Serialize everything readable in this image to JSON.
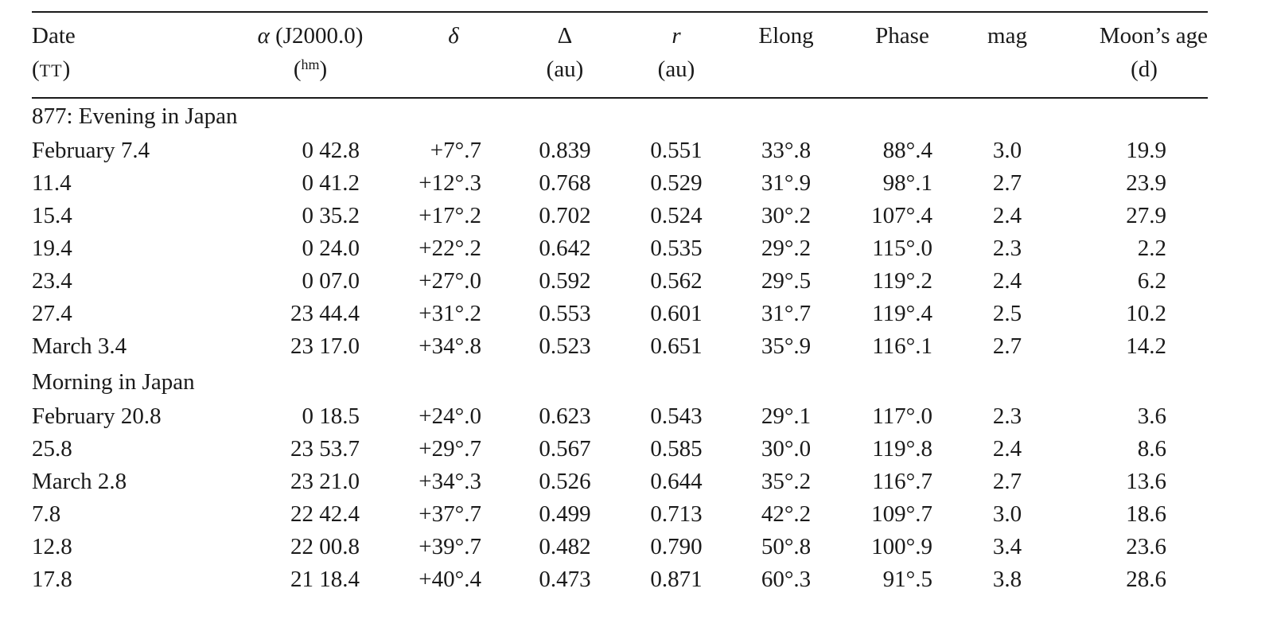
{
  "header": {
    "date": {
      "line1": "Date",
      "line2_open": "(",
      "line2_sc": "TT",
      "line2_close": ")"
    },
    "alpha": {
      "symbol": "α",
      "text": " (J2000.0)",
      "line2_open": "(",
      "sup": "hm",
      "line2_close": ")"
    },
    "delta": {
      "symbol": "δ"
    },
    "Delta": {
      "line1": "Δ",
      "line2": "(au)"
    },
    "r": {
      "symbol": "r",
      "line2": "(au)"
    },
    "elong": {
      "line1": "Elong"
    },
    "phase": {
      "line1": "Phase"
    },
    "mag": {
      "line1": "mag"
    },
    "moon_age": {
      "line1": "Moon’s age",
      "line2": "(d)"
    }
  },
  "sections": [
    {
      "title": "877: Evening in Japan",
      "rows": [
        {
          "date": "February 7.4",
          "alpha": "0 42.8",
          "delta": "+7°.7",
          "Delta": "0.839",
          "r": "0.551",
          "elong": "33°.8",
          "phase": "88°.4",
          "mag": "3.0",
          "moon_age": "19.9"
        },
        {
          "date": "11.4",
          "alpha": "0 41.2",
          "delta": "+12°.3",
          "Delta": "0.768",
          "r": "0.529",
          "elong": "31°.9",
          "phase": "98°.1",
          "mag": "2.7",
          "moon_age": "23.9"
        },
        {
          "date": "15.4",
          "alpha": "0 35.2",
          "delta": "+17°.2",
          "Delta": "0.702",
          "r": "0.524",
          "elong": "30°.2",
          "phase": "107°.4",
          "mag": "2.4",
          "moon_age": "27.9"
        },
        {
          "date": "19.4",
          "alpha": "0 24.0",
          "delta": "+22°.2",
          "Delta": "0.642",
          "r": "0.535",
          "elong": "29°.2",
          "phase": "115°.0",
          "mag": "2.3",
          "moon_age": "2.2"
        },
        {
          "date": "23.4",
          "alpha": "0 07.0",
          "delta": "+27°.0",
          "Delta": "0.592",
          "r": "0.562",
          "elong": "29°.5",
          "phase": "119°.2",
          "mag": "2.4",
          "moon_age": "6.2"
        },
        {
          "date": "27.4",
          "alpha": "23 44.4",
          "delta": "+31°.2",
          "Delta": "0.553",
          "r": "0.601",
          "elong": "31°.7",
          "phase": "119°.4",
          "mag": "2.5",
          "moon_age": "10.2"
        },
        {
          "date": "March 3.4",
          "alpha": "23 17.0",
          "delta": "+34°.8",
          "Delta": "0.523",
          "r": "0.651",
          "elong": "35°.9",
          "phase": "116°.1",
          "mag": "2.7",
          "moon_age": "14.2"
        }
      ]
    },
    {
      "title": "Morning in Japan",
      "rows": [
        {
          "date": "February 20.8",
          "alpha": "0 18.5",
          "delta": "+24°.0",
          "Delta": "0.623",
          "r": "0.543",
          "elong": "29°.1",
          "phase": "117°.0",
          "mag": "2.3",
          "moon_age": "3.6"
        },
        {
          "date": "25.8",
          "alpha": "23 53.7",
          "delta": "+29°.7",
          "Delta": "0.567",
          "r": "0.585",
          "elong": "30°.0",
          "phase": "119°.8",
          "mag": "2.4",
          "moon_age": "8.6"
        },
        {
          "date": "March 2.8",
          "alpha": "23 21.0",
          "delta": "+34°.3",
          "Delta": "0.526",
          "r": "0.644",
          "elong": "35°.2",
          "phase": "116°.7",
          "mag": "2.7",
          "moon_age": "13.6"
        },
        {
          "date": "7.8",
          "alpha": "22 42.4",
          "delta": "+37°.7",
          "Delta": "0.499",
          "r": "0.713",
          "elong": "42°.2",
          "phase": "109°.7",
          "mag": "3.0",
          "moon_age": "18.6"
        },
        {
          "date": "12.8",
          "alpha": "22 00.8",
          "delta": "+39°.7",
          "Delta": "0.482",
          "r": "0.790",
          "elong": "50°.8",
          "phase": "100°.9",
          "mag": "3.4",
          "moon_age": "23.6"
        },
        {
          "date": "17.8",
          "alpha": "21 18.4",
          "delta": "+40°.4",
          "Delta": "0.473",
          "r": "0.871",
          "elong": "60°.3",
          "phase": "91°.5",
          "mag": "3.8",
          "moon_age": "28.6"
        }
      ]
    }
  ]
}
